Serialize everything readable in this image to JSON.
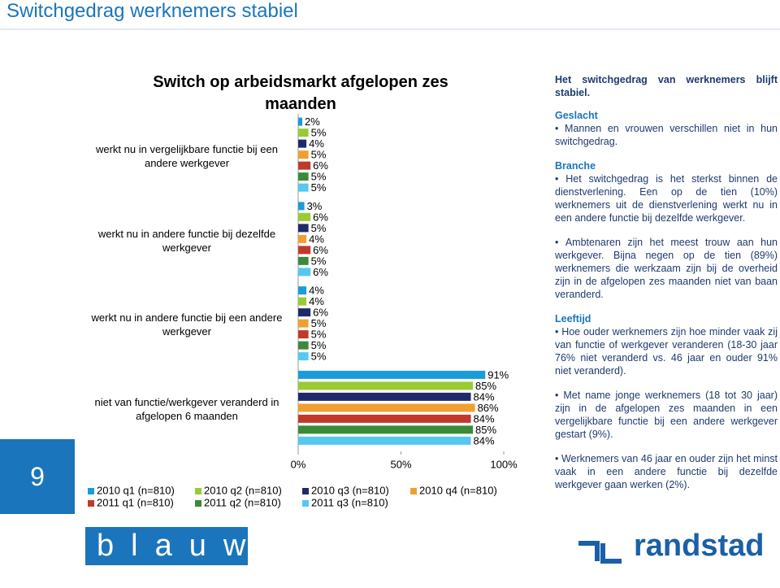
{
  "header": {
    "title": "Switchgedrag werknemers stabiel"
  },
  "slide_number": "9",
  "chart_data": {
    "type": "hbar",
    "title": "Switch op arbeidsmarkt afgelopen zes maanden",
    "categories": [
      "werkt nu in vergelijkbare functie bij een andere werkgever",
      "werkt nu in andere functie bij dezelfde werkgever",
      "werkt nu in andere functie bij een andere werkgever",
      "niet van functie/werkgever veranderd in afgelopen 6 maanden"
    ],
    "series": [
      {
        "name": "2010 q1 (n=810)",
        "color": "#1a9cd8",
        "values": [
          2,
          3,
          4,
          91
        ],
        "value_labels": [
          "2%",
          "3%",
          "4%",
          "91%"
        ]
      },
      {
        "name": "2010 q2 (n=810)",
        "color": "#99cc33",
        "values": [
          5,
          6,
          4,
          85
        ],
        "value_labels": [
          "5%",
          "6%",
          "4%",
          "85%"
        ]
      },
      {
        "name": "2010 q3 (n=810)",
        "color": "#1f2a6b",
        "values": [
          4,
          5,
          6,
          84
        ],
        "value_labels": [
          "4%",
          "5%",
          "6%",
          "84%"
        ]
      },
      {
        "name": "2010 q4 (n=810)",
        "color": "#f0a030",
        "values": [
          5,
          4,
          5,
          86
        ],
        "value_labels": [
          "5%",
          "4%",
          "5%",
          "86%"
        ]
      },
      {
        "name": "2011 q1 (n=810)",
        "color": "#c0392b",
        "values": [
          6,
          6,
          5,
          84
        ],
        "value_labels": [
          "6%",
          "6%",
          "5%",
          "84%"
        ]
      },
      {
        "name": "2011 q2 (n=810)",
        "color": "#3a8a3a",
        "values": [
          5,
          5,
          5,
          85
        ],
        "value_labels": [
          "5%",
          "5%",
          "5%",
          "85%"
        ]
      },
      {
        "name": "2011 q3 (n=810)",
        "color": "#55c8f0",
        "values": [
          5,
          6,
          5,
          84
        ],
        "value_labels": [
          "5%",
          "6%",
          "5%",
          "84%"
        ]
      }
    ],
    "xlim": [
      0,
      100
    ],
    "xticks": [
      {
        "value": 0,
        "label": "0%"
      },
      {
        "value": 50,
        "label": "50%"
      },
      {
        "value": 100,
        "label": "100%"
      }
    ]
  },
  "panel": {
    "intro": "Het switchgedrag van werknemers blijft stabiel.",
    "sections": [
      {
        "heading": "Geslacht",
        "bullets": [
          "Mannen en vrouwen verschillen niet in hun switchgedrag."
        ]
      },
      {
        "heading": "Branche",
        "bullets": [
          "Het switchgedrag is het sterkst binnen de dienstverlening. Een op de tien (10%) werknemers uit de dienstverlening werkt nu in een andere functie bij dezelfde werkgever.",
          "Ambtenaren zijn het meest trouw aan hun werkgever. Bijna negen op de tien (89%) werknemers die werkzaam zijn bij de overheid zijn in de afgelopen zes maanden niet van baan veranderd."
        ]
      },
      {
        "heading": "Leeftijd",
        "bullets": [
          "Hoe ouder werknemers zijn hoe minder vaak zij van functie of werkgever veranderen (18-30 jaar 76% niet veranderd vs. 46 jaar en ouder 91% niet veranderd).",
          "Met name jonge werknemers (18 tot 30 jaar) zijn in de afgelopen zes maanden in een vergelijkbare functie bij een andere werkgever gestart (9%).",
          "Werknemers van 46 jaar en ouder zijn het minst vaak in een andere functie bij dezelfde werkgever gaan werken (2%)."
        ]
      }
    ]
  },
  "logos": {
    "left": "blauw",
    "right": "randstad"
  }
}
